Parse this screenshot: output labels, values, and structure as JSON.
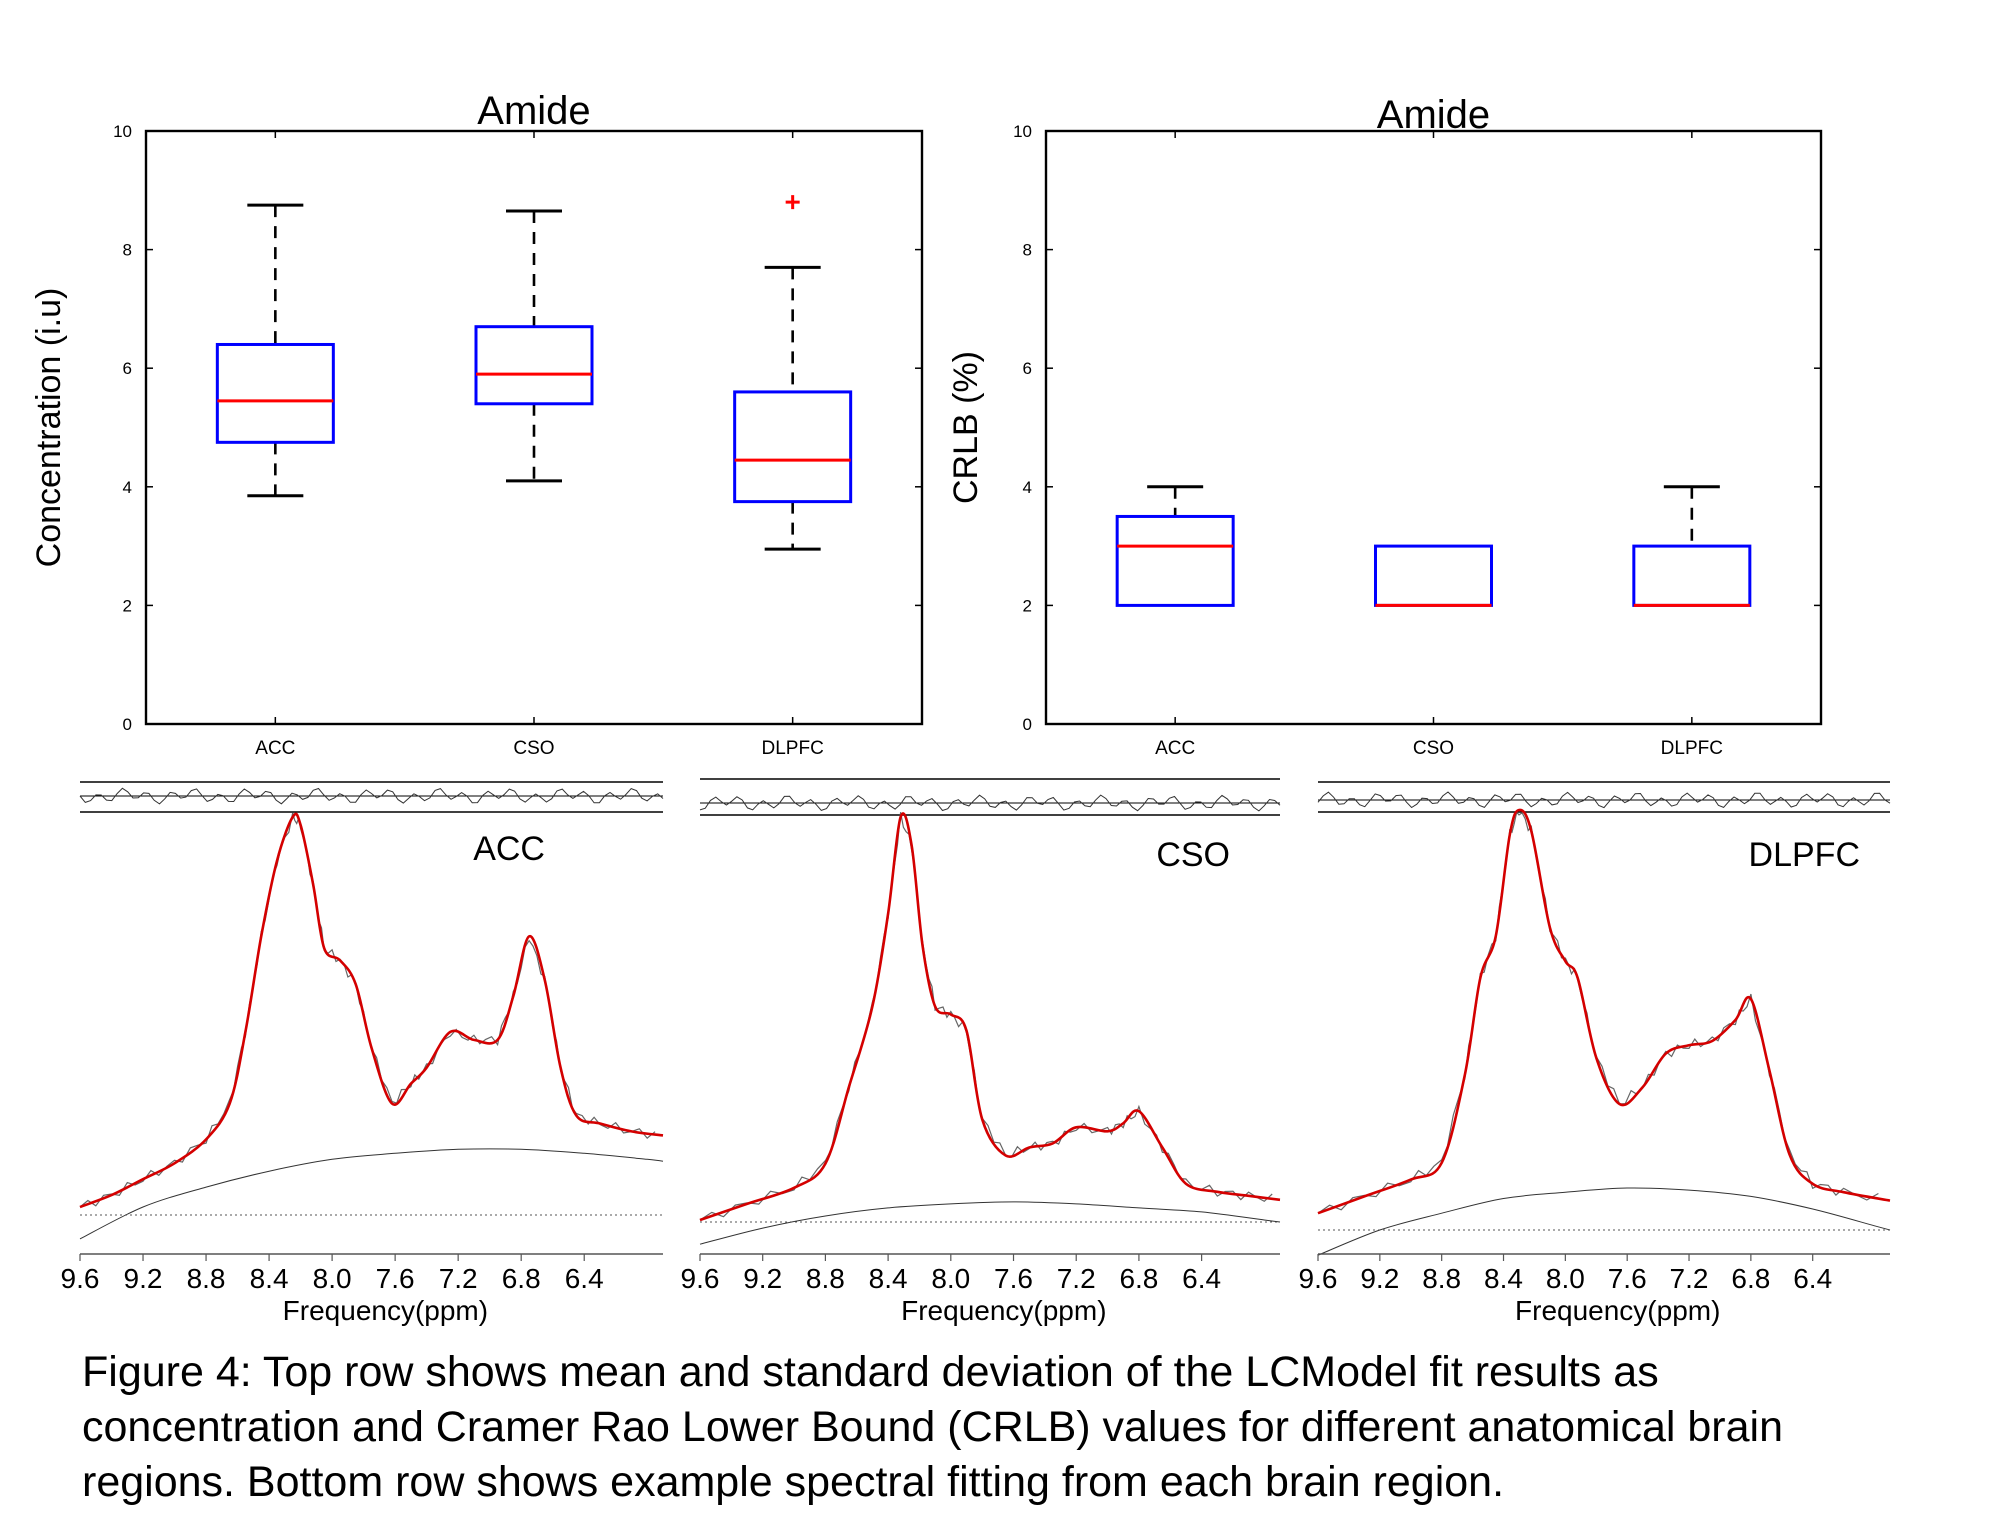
{
  "chart_data": [
    {
      "type": "box",
      "title": "Amide",
      "xlabel": "",
      "ylabel": "Concentration (i.u)",
      "ylim": [
        0,
        10
      ],
      "yticks": [
        "0",
        "2",
        "4",
        "6",
        "8",
        "10"
      ],
      "categories": [
        "ACC",
        "CSO",
        "DLPFC"
      ],
      "boxes": [
        {
          "category": "ACC",
          "whisker_low": 3.85,
          "q1": 4.75,
          "median": 5.45,
          "q3": 6.4,
          "whisker_high": 8.75,
          "outliers": []
        },
        {
          "category": "CSO",
          "whisker_low": 4.1,
          "q1": 5.4,
          "median": 5.9,
          "q3": 6.7,
          "whisker_high": 8.65,
          "outliers": []
        },
        {
          "category": "DLPFC",
          "whisker_low": 2.95,
          "q1": 3.75,
          "median": 4.45,
          "q3": 5.6,
          "whisker_high": 7.7,
          "outliers": [
            8.8
          ]
        }
      ],
      "colors": {
        "box": "#0000ff",
        "median": "#ff0000",
        "whisker": "#000000",
        "outlier": "#ff0000"
      },
      "grid": false
    },
    {
      "type": "box",
      "title": "Amide",
      "xlabel": "",
      "ylabel": "CRLB (%)",
      "ylim": [
        0,
        10
      ],
      "yticks": [
        "0",
        "2",
        "4",
        "6",
        "8",
        "10"
      ],
      "categories": [
        "ACC",
        "CSO",
        "DLPFC"
      ],
      "boxes": [
        {
          "category": "ACC",
          "whisker_low": 2,
          "q1": 2,
          "median": 3,
          "q3": 3.5,
          "whisker_high": 4,
          "outliers": []
        },
        {
          "category": "CSO",
          "whisker_low": 2,
          "q1": 2,
          "median": 2,
          "q3": 3,
          "whisker_high": 3,
          "outliers": []
        },
        {
          "category": "DLPFC",
          "whisker_low": 2,
          "q1": 2,
          "median": 2,
          "q3": 3,
          "whisker_high": 4,
          "outliers": []
        }
      ],
      "colors": {
        "box": "#0000ff",
        "median": "#ff0000",
        "whisker": "#000000",
        "outlier": "#ff0000"
      },
      "grid": false
    },
    {
      "type": "line",
      "label": "ACC",
      "xlabel": "Frequency(ppm)",
      "xticks": [
        "9.6",
        "9.2",
        "8.8",
        "8.4",
        "8.0",
        "7.6",
        "7.2",
        "6.8",
        "6.4"
      ],
      "x_reversed": true,
      "xlim": [
        9.6,
        5.9
      ],
      "series": [
        {
          "role": "fit",
          "color": "#d40000",
          "points": [
            [
              9.6,
              0.02
            ],
            [
              9.4,
              0.05
            ],
            [
              9.2,
              0.09
            ],
            [
              9.0,
              0.13
            ],
            [
              8.8,
              0.19
            ],
            [
              8.65,
              0.28
            ],
            [
              8.55,
              0.46
            ],
            [
              8.45,
              0.7
            ],
            [
              8.35,
              0.89
            ],
            [
              8.25,
              1.0
            ],
            [
              8.2,
              0.98
            ],
            [
              8.12,
              0.83
            ],
            [
              8.05,
              0.67
            ],
            [
              7.95,
              0.64
            ],
            [
              7.85,
              0.58
            ],
            [
              7.75,
              0.42
            ],
            [
              7.62,
              0.28
            ],
            [
              7.5,
              0.33
            ],
            [
              7.4,
              0.37
            ],
            [
              7.25,
              0.46
            ],
            [
              7.1,
              0.44
            ],
            [
              6.95,
              0.44
            ],
            [
              6.85,
              0.55
            ],
            [
              6.75,
              0.7
            ],
            [
              6.65,
              0.59
            ],
            [
              6.55,
              0.37
            ],
            [
              6.45,
              0.25
            ],
            [
              6.3,
              0.23
            ],
            [
              6.1,
              0.21
            ],
            [
              5.9,
              0.2
            ]
          ]
        },
        {
          "role": "baseline",
          "color": "#333333",
          "points": [
            [
              9.6,
              -0.06
            ],
            [
              9.2,
              0.02
            ],
            [
              8.8,
              0.07
            ],
            [
              8.4,
              0.11
            ],
            [
              8.0,
              0.14
            ],
            [
              7.6,
              0.155
            ],
            [
              7.2,
              0.165
            ],
            [
              6.8,
              0.165
            ],
            [
              6.4,
              0.155
            ],
            [
              6.0,
              0.14
            ],
            [
              5.9,
              0.135
            ]
          ]
        }
      ]
    },
    {
      "type": "line",
      "label": "CSO",
      "xlabel": "Frequency(ppm)",
      "xticks": [
        "9.6",
        "9.2",
        "8.8",
        "8.4",
        "8.0",
        "7.6",
        "7.2",
        "6.8",
        "6.4"
      ],
      "x_reversed": true,
      "xlim": [
        9.6,
        5.9
      ],
      "series": [
        {
          "role": "fit",
          "color": "#d40000",
          "points": [
            [
              9.6,
              0.0
            ],
            [
              9.3,
              0.04
            ],
            [
              9.0,
              0.08
            ],
            [
              8.8,
              0.14
            ],
            [
              8.65,
              0.33
            ],
            [
              8.5,
              0.53
            ],
            [
              8.4,
              0.76
            ],
            [
              8.32,
              1.0
            ],
            [
              8.25,
              0.93
            ],
            [
              8.18,
              0.68
            ],
            [
              8.1,
              0.53
            ],
            [
              8.0,
              0.51
            ],
            [
              7.9,
              0.47
            ],
            [
              7.8,
              0.25
            ],
            [
              7.65,
              0.16
            ],
            [
              7.5,
              0.18
            ],
            [
              7.35,
              0.19
            ],
            [
              7.2,
              0.23
            ],
            [
              7.0,
              0.22
            ],
            [
              6.9,
              0.24
            ],
            [
              6.8,
              0.27
            ],
            [
              6.65,
              0.18
            ],
            [
              6.5,
              0.09
            ],
            [
              6.3,
              0.07
            ],
            [
              6.1,
              0.06
            ],
            [
              5.9,
              0.05
            ]
          ]
        },
        {
          "role": "baseline",
          "color": "#333333",
          "points": [
            [
              9.6,
              -0.06
            ],
            [
              9.2,
              -0.02
            ],
            [
              8.8,
              0.01
            ],
            [
              8.4,
              0.03
            ],
            [
              8.0,
              0.04
            ],
            [
              7.6,
              0.045
            ],
            [
              7.2,
              0.04
            ],
            [
              6.8,
              0.03
            ],
            [
              6.4,
              0.02
            ],
            [
              6.0,
              0.0
            ],
            [
              5.9,
              -0.005
            ]
          ]
        }
      ]
    },
    {
      "type": "line",
      "label": "DLPFC",
      "xlabel": "Frequency(ppm)",
      "xticks": [
        "9.6",
        "9.2",
        "8.8",
        "8.4",
        "8.0",
        "7.6",
        "7.2",
        "6.8",
        "6.4"
      ],
      "x_reversed": true,
      "xlim": [
        9.6,
        5.9
      ],
      "series": [
        {
          "role": "fit",
          "color": "#d40000",
          "points": [
            [
              9.6,
              0.04
            ],
            [
              9.3,
              0.08
            ],
            [
              9.0,
              0.12
            ],
            [
              8.8,
              0.16
            ],
            [
              8.65,
              0.37
            ],
            [
              8.55,
              0.6
            ],
            [
              8.45,
              0.7
            ],
            [
              8.36,
              0.94
            ],
            [
              8.3,
              1.0
            ],
            [
              8.22,
              0.95
            ],
            [
              8.1,
              0.72
            ],
            [
              8.0,
              0.64
            ],
            [
              7.92,
              0.6
            ],
            [
              7.8,
              0.41
            ],
            [
              7.65,
              0.3
            ],
            [
              7.5,
              0.34
            ],
            [
              7.35,
              0.42
            ],
            [
              7.2,
              0.44
            ],
            [
              7.05,
              0.45
            ],
            [
              6.9,
              0.5
            ],
            [
              6.8,
              0.55
            ],
            [
              6.68,
              0.38
            ],
            [
              6.55,
              0.18
            ],
            [
              6.4,
              0.11
            ],
            [
              6.2,
              0.09
            ],
            [
              5.9,
              0.07
            ]
          ]
        },
        {
          "role": "baseline",
          "color": "#333333",
          "points": [
            [
              9.6,
              -0.06
            ],
            [
              9.2,
              0.0
            ],
            [
              8.8,
              0.04
            ],
            [
              8.4,
              0.075
            ],
            [
              8.0,
              0.09
            ],
            [
              7.6,
              0.1
            ],
            [
              7.2,
              0.095
            ],
            [
              6.8,
              0.08
            ],
            [
              6.4,
              0.05
            ],
            [
              6.0,
              0.01
            ],
            [
              5.9,
              0.0
            ]
          ]
        }
      ]
    }
  ],
  "caption": "Figure 4: Top row shows mean and standard deviation of the LCModel fit results as concentration and Cramer Rao Lower Bound (CRLB) values for different anatomical brain regions. Bottom row shows example spectral fitting from each brain region."
}
